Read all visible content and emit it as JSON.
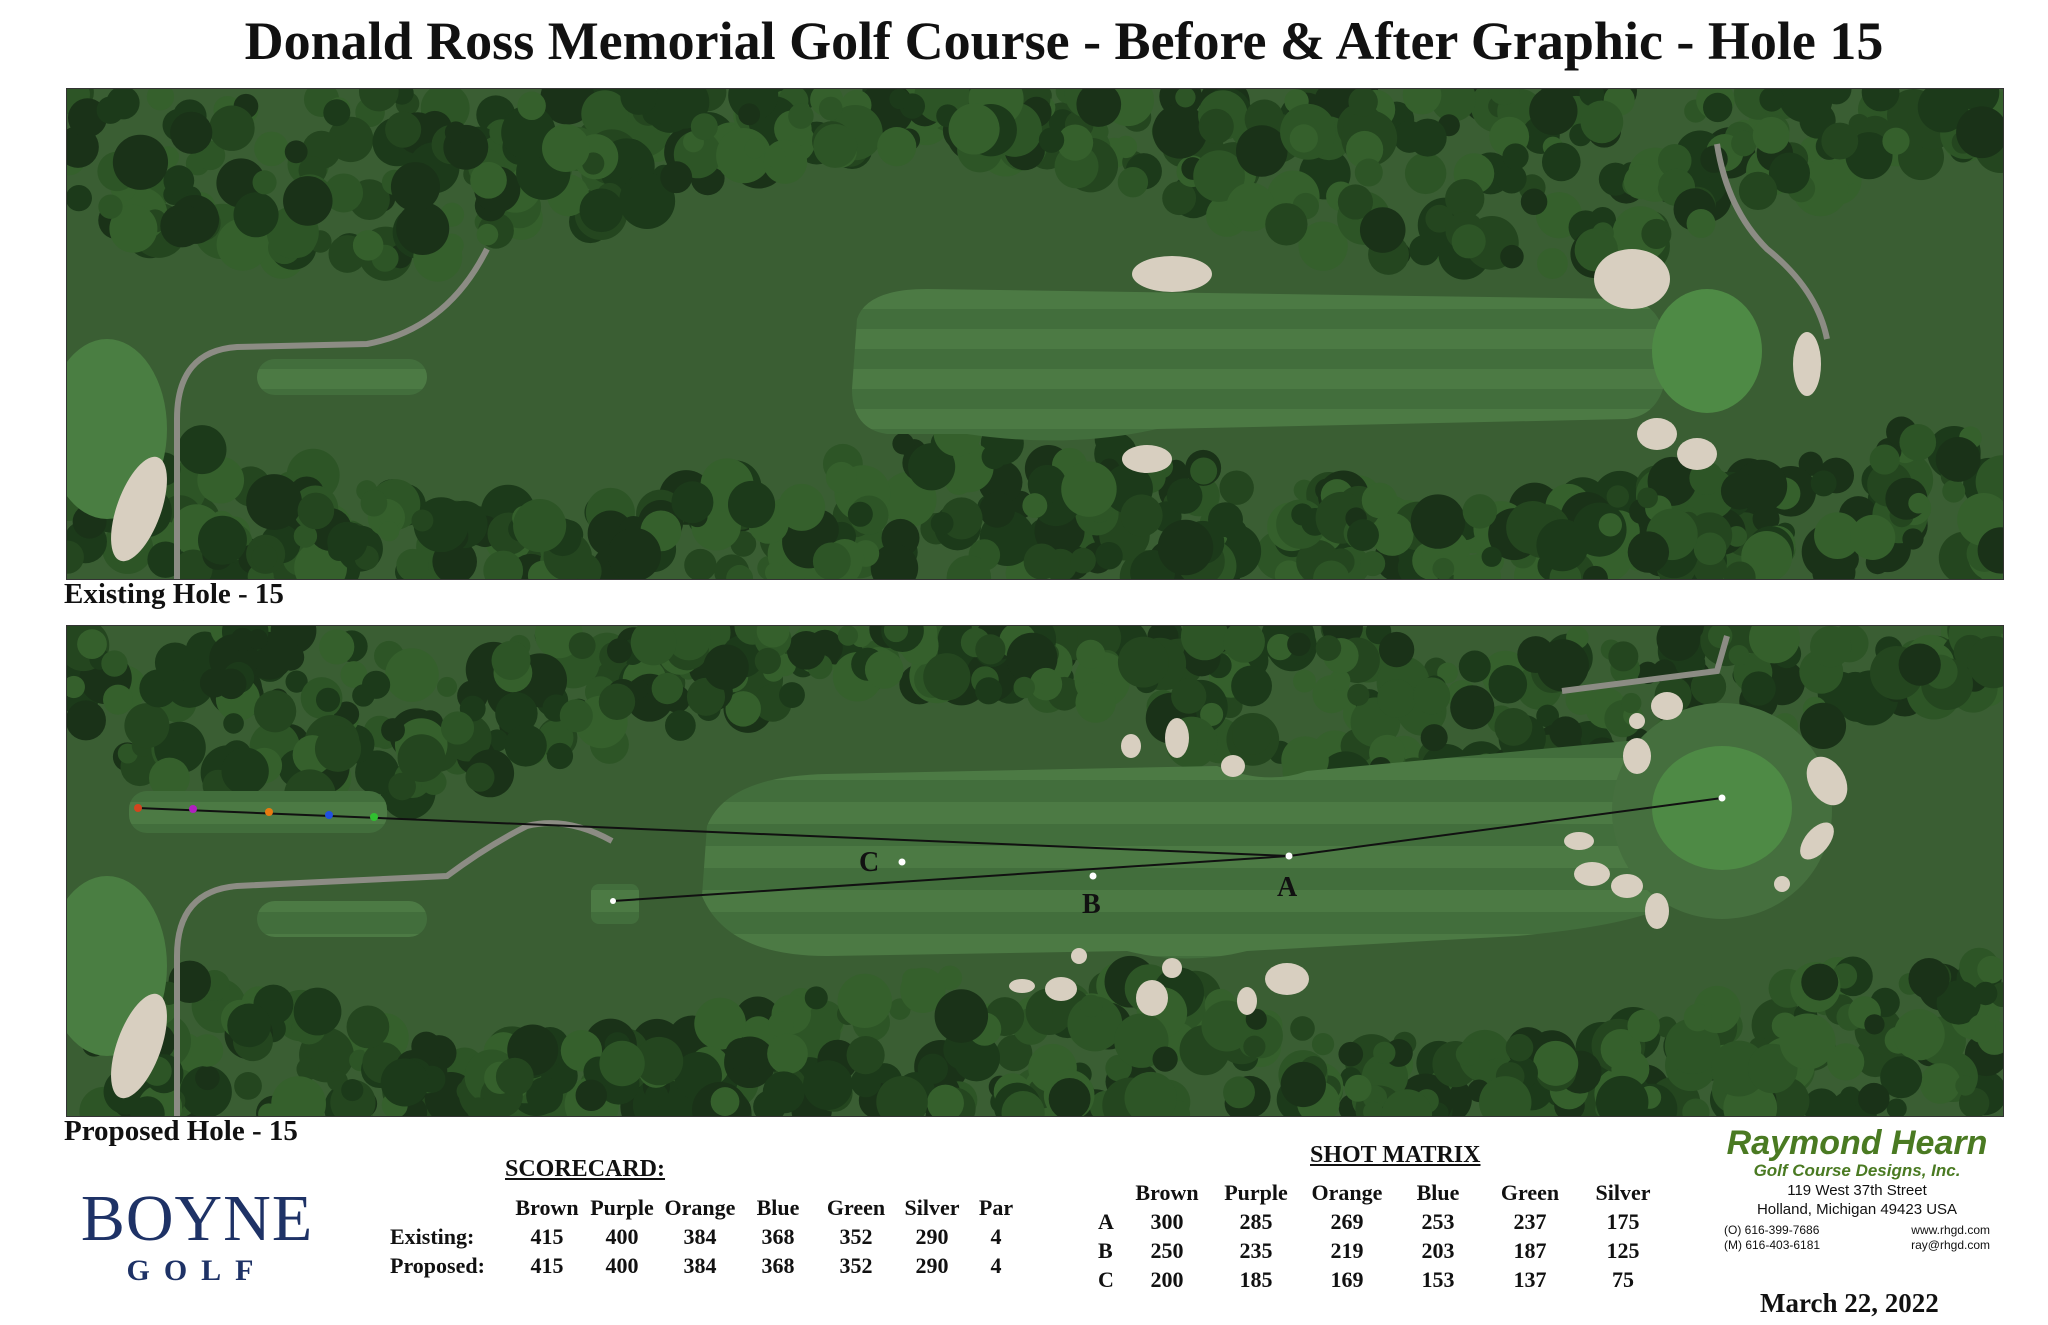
{
  "title": "Donald Ross Memorial Golf Course - Before & After Graphic - Hole 15",
  "panels": {
    "existing_caption": "Existing Hole - 15",
    "proposed_caption": "Proposed Hole - 15",
    "shot_labels": [
      "A",
      "B",
      "C"
    ],
    "tee_marker_colors": [
      "#d2451e",
      "#b020c0",
      "#e87a10",
      "#2050e0",
      "#30c030"
    ]
  },
  "boyne_logo": {
    "line1": "BOYNE",
    "line2": "GOLF"
  },
  "scorecard": {
    "heading": "SCORECARD:",
    "columns": [
      "Brown",
      "Purple",
      "Orange",
      "Blue",
      "Green",
      "Silver",
      "Par"
    ],
    "rows": [
      {
        "label": "Existing:",
        "values": [
          "415",
          "400",
          "384",
          "368",
          "352",
          "290",
          "4"
        ]
      },
      {
        "label": "Proposed:",
        "values": [
          "415",
          "400",
          "384",
          "368",
          "352",
          "290",
          "4"
        ]
      }
    ]
  },
  "shot_matrix": {
    "heading": "SHOT MATRIX",
    "columns": [
      "Brown",
      "Purple",
      "Orange",
      "Blue",
      "Green",
      "Silver"
    ],
    "rows": [
      {
        "label": "A",
        "values": [
          "300",
          "285",
          "269",
          "253",
          "237",
          "175"
        ]
      },
      {
        "label": "B",
        "values": [
          "250",
          "235",
          "219",
          "203",
          "187",
          "125"
        ]
      },
      {
        "label": "C",
        "values": [
          "200",
          "185",
          "169",
          "153",
          "137",
          "75"
        ]
      }
    ]
  },
  "designer": {
    "name": "Raymond Hearn",
    "subtitle": "Golf Course Designs, Inc.",
    "address1": "119 West 37th Street",
    "address2": "Holland, Michigan 49423 USA",
    "office": "(O) 616-399-7686",
    "mobile": "(M) 616-403-6181",
    "web": "www.rhgd.com",
    "email": "ray@rhgd.com",
    "brand_color": "#4a7a22"
  },
  "date": "March 22, 2022"
}
